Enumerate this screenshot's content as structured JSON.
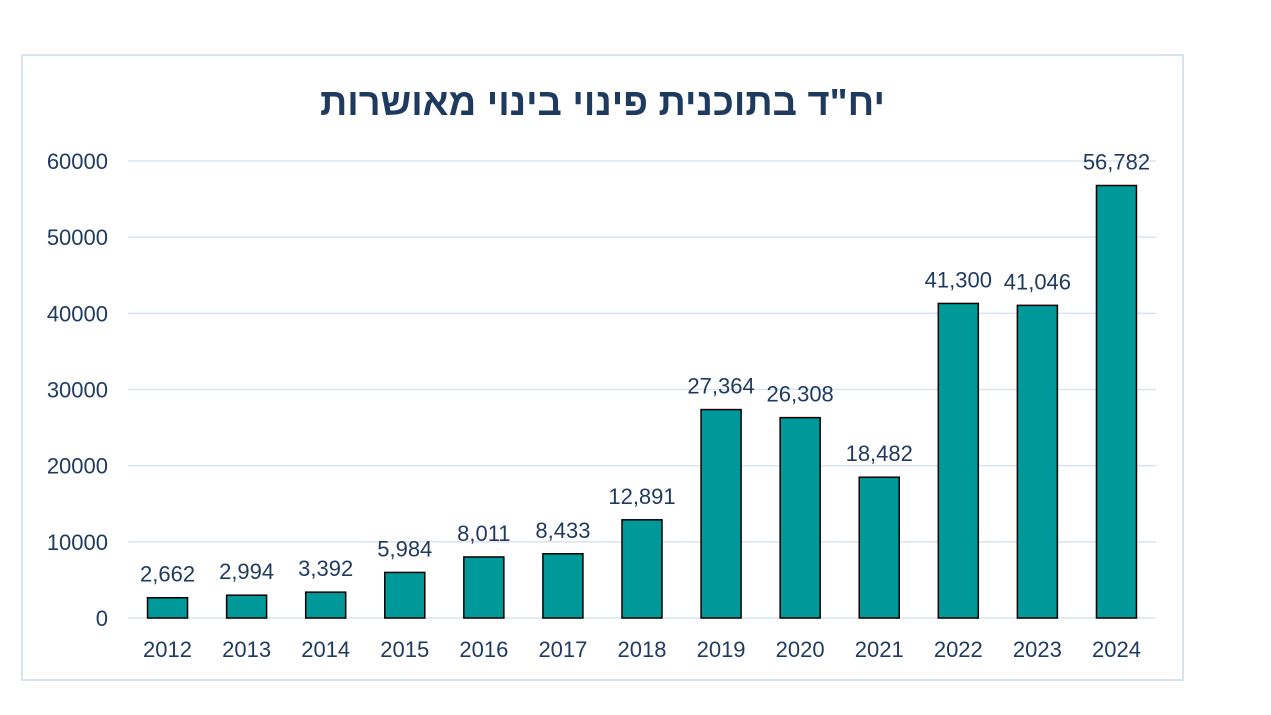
{
  "chart_data": {
    "type": "bar",
    "title": "יח\"ד בתוכנית פינוי בינוי מאושרות",
    "categories": [
      "2012",
      "2013",
      "2014",
      "2015",
      "2016",
      "2017",
      "2018",
      "2019",
      "2020",
      "2021",
      "2022",
      "2023",
      "2024"
    ],
    "values": [
      2662,
      2994,
      3392,
      5984,
      8011,
      8433,
      12891,
      27364,
      26308,
      18482,
      41300,
      41046,
      56782
    ],
    "data_labels": [
      "2,662",
      "2,994",
      "3,392",
      "5,984",
      "8,011",
      "8,433",
      "12,891",
      "27,364",
      "26,308",
      "18,482",
      "41,300",
      "41,046",
      "56,782"
    ],
    "y_ticks": [
      "0",
      "10000",
      "20000",
      "30000",
      "40000",
      "50000",
      "60000"
    ],
    "ylim": [
      0,
      60000
    ],
    "xlabel": "",
    "ylabel": "",
    "grid": true,
    "legend": "none",
    "bar_color": "#009999",
    "bar_border": "#000000",
    "grid_color": "#d9e3ee",
    "text_color": "#1f3a5f"
  }
}
